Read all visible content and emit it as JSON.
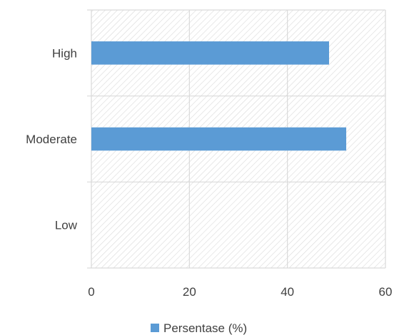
{
  "chart_data": {
    "type": "bar",
    "orientation": "horizontal",
    "categories": [
      "High",
      "Moderate",
      "Low"
    ],
    "series": [
      {
        "name": "Persentase (%)",
        "values": [
          48.5,
          52,
          0
        ]
      }
    ],
    "xlim": [
      0,
      60
    ],
    "x_ticks": [
      0,
      20,
      40,
      60
    ],
    "x_tick_labels": [
      "0",
      "20",
      "40",
      "60"
    ],
    "grid": true,
    "plot_background": "diagonal-hatch",
    "legend_position": "bottom",
    "colors": {
      "bar": "#5b9bd5",
      "grid": "#d9d9d9",
      "hatch": "#d9d9d9",
      "text": "#404040"
    }
  }
}
